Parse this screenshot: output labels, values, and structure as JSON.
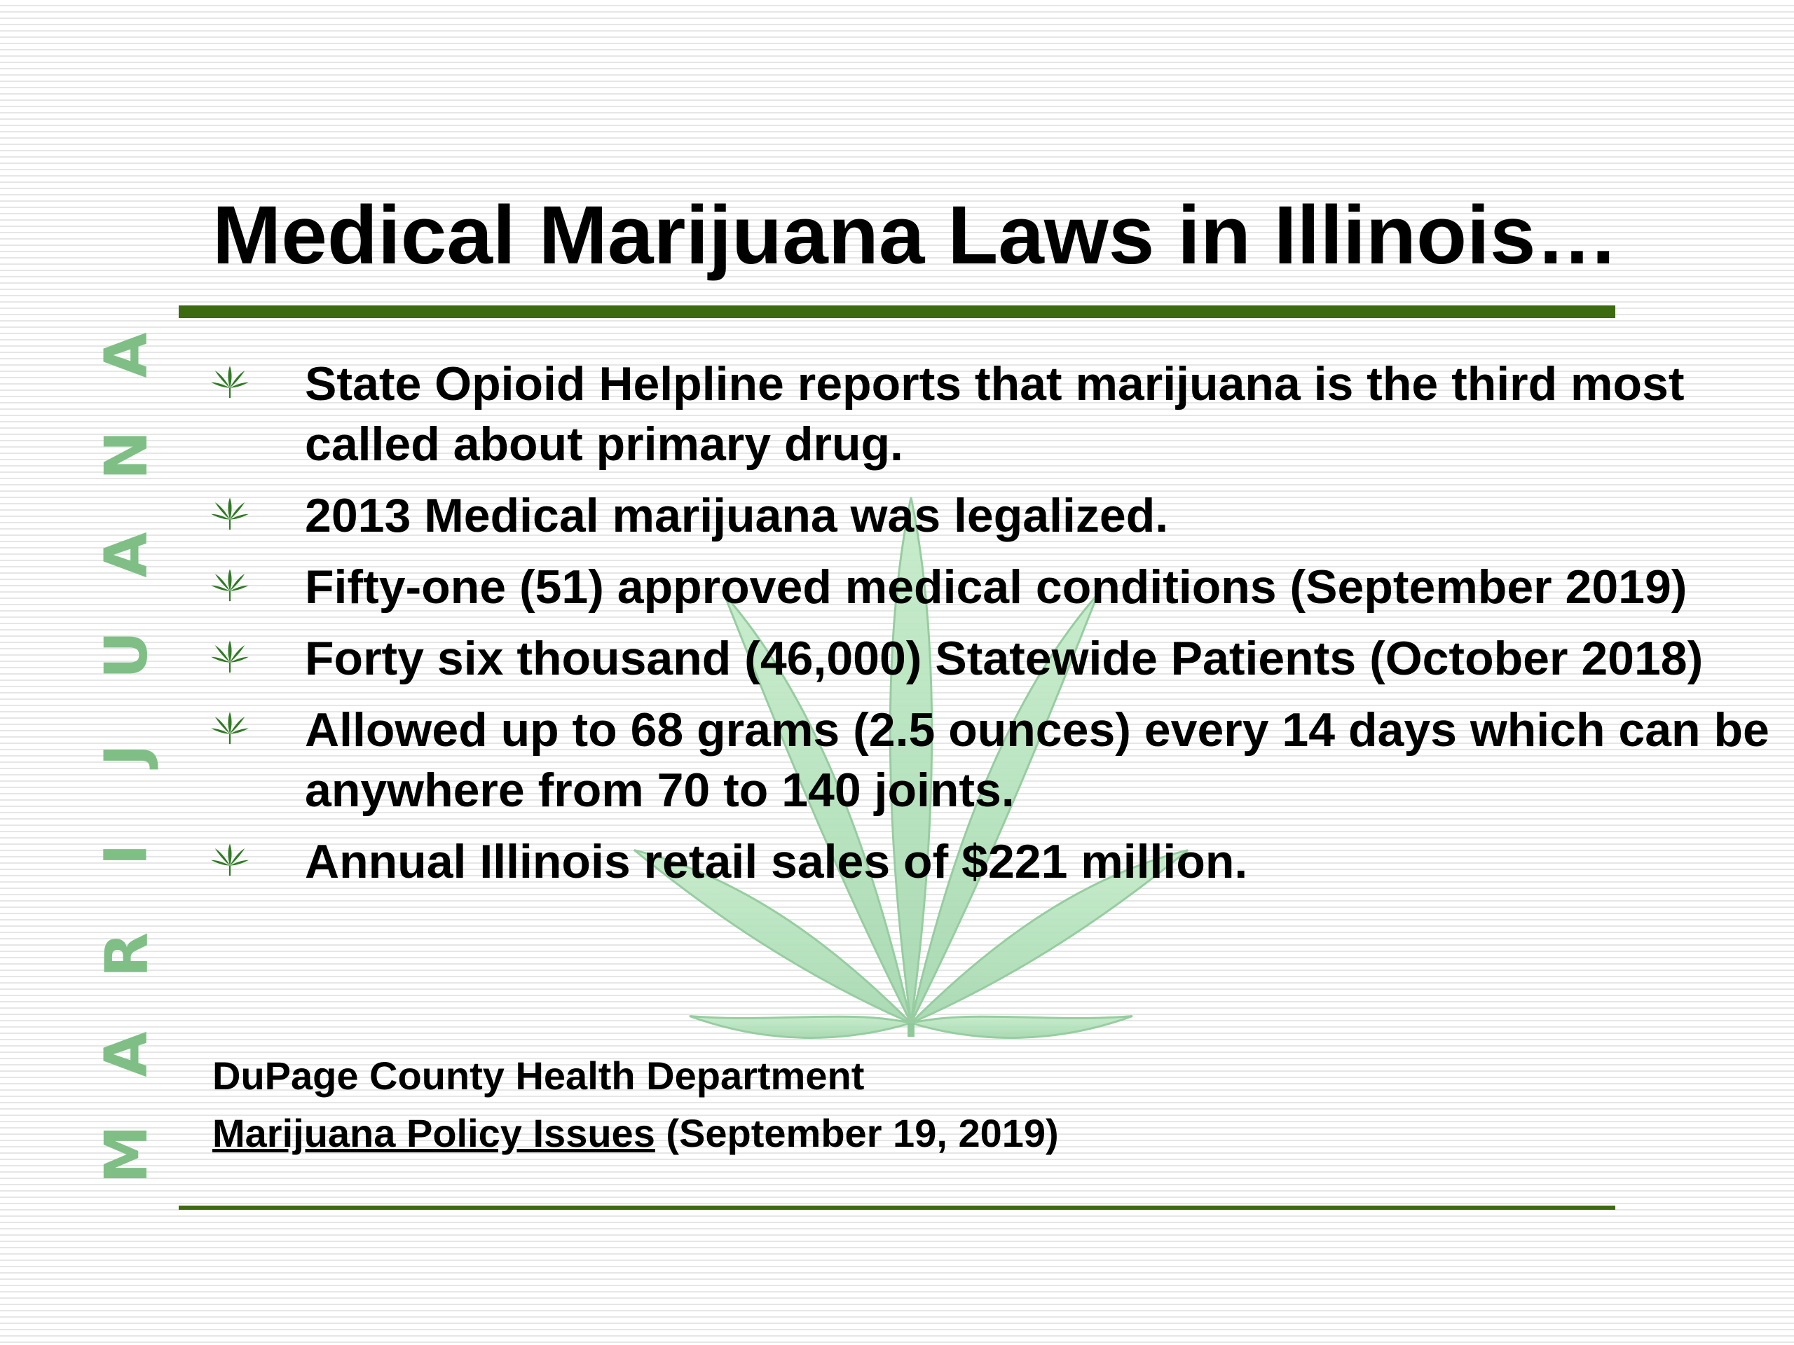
{
  "title": "Medical Marijuana Laws in Illinois…",
  "side_letters": [
    "A",
    "N",
    "A",
    "U",
    "J",
    "I",
    "R",
    "A",
    "M"
  ],
  "bullets": [
    "State Opioid Helpline reports that marijuana is the third most called about primary drug.",
    "2013 Medical marijuana was legalized.",
    "Fifty-one (51) approved medical conditions (September 2019)",
    "Forty six thousand (46,000) Statewide Patients (October 2018)",
    "Allowed up to 68 grams (2.5 ounces) every 14 days which can be anywhere from 70 to 140 joints.",
    "Annual Illinois retail sales of $221 million."
  ],
  "source": {
    "org": "DuPage County Health Department",
    "link_text": "Marijuana Policy Issues",
    "date": " (September 19, 2019)"
  },
  "colors": {
    "rule": "#3c6a10",
    "side_text": "#7fbf86",
    "bullet_icon": "#2f7a24",
    "leaf_watermark": "#b4e3bd"
  },
  "icons": {
    "bullet": "cannabis-leaf-icon",
    "watermark": "cannabis-leaf-watermark"
  }
}
